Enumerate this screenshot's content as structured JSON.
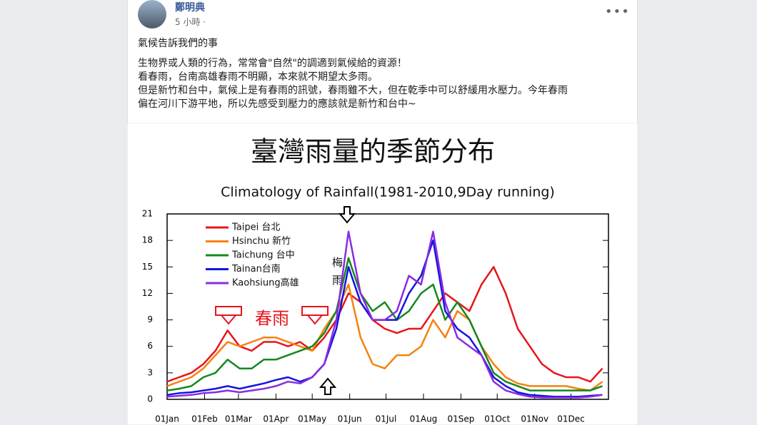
{
  "post": {
    "author": "鄭明典",
    "time": "5 小時 ·",
    "text_lines": [
      "氣候告訴我們的事",
      "生物界或人類的行為，常常會\"自然\"的調適到氣候給的資源！",
      "看春雨，台南高雄春雨不明顯，本來就不期望太多雨。",
      "但是新竹和台中，氣候上是有春雨的訊號，春雨雖不大，但在乾季中可以舒緩用水壓力。今年春雨",
      "偏在河川下游平地，所以先感受到壓力的應該就是新竹和台中~"
    ]
  },
  "chart_data": {
    "type": "line",
    "title": "臺灣雨量的季節分布",
    "subtitle": "Climatology of Rainfall(1981-2010,9Day running)",
    "annotations": [
      "春雨",
      "梅雨"
    ],
    "x": [
      1,
      11,
      21,
      31,
      41,
      51,
      61,
      71,
      81,
      91,
      101,
      111,
      121,
      131,
      141,
      151,
      161,
      171,
      181,
      191,
      201,
      211,
      221,
      231,
      241,
      251,
      261,
      271,
      281,
      291,
      301,
      311,
      321,
      331,
      341,
      351,
      361
    ],
    "xlim": [
      1,
      366
    ],
    "xticks": [
      {
        "value": 1,
        "label": "01Jan"
      },
      {
        "value": 32,
        "label": "01Feb"
      },
      {
        "value": 60,
        "label": "01Mar"
      },
      {
        "value": 91,
        "label": "01Apr"
      },
      {
        "value": 121,
        "label": "01May"
      },
      {
        "value": 152,
        "label": "01Jun"
      },
      {
        "value": 182,
        "label": "01Jul"
      },
      {
        "value": 213,
        "label": "01Aug"
      },
      {
        "value": 244,
        "label": "01Sep"
      },
      {
        "value": 274,
        "label": "01Oct"
      },
      {
        "value": 305,
        "label": "01Nov"
      },
      {
        "value": 335,
        "label": "01Dec"
      }
    ],
    "ylim": [
      0,
      21
    ],
    "yticks": [
      0,
      3,
      6,
      9,
      12,
      15,
      18,
      21
    ],
    "series": [
      {
        "name": "Taipei 台北",
        "color": "#e8141b",
        "values": [
          2,
          2.5,
          3,
          4,
          5.5,
          7.8,
          6,
          5.5,
          6.5,
          6.5,
          6,
          6.5,
          5.5,
          7,
          9,
          12,
          11,
          9,
          8,
          7.5,
          8,
          8,
          10,
          12,
          11,
          10,
          13,
          15,
          12,
          8,
          6,
          4,
          3,
          2.5,
          2.5,
          2,
          3.5
        ]
      },
      {
        "name": "Hsinchu 新竹",
        "color": "#f5820f",
        "values": [
          1.5,
          2,
          2.5,
          3.5,
          5,
          6.5,
          6,
          6.5,
          7,
          7,
          6.5,
          6,
          5.5,
          8,
          10,
          13,
          7,
          4,
          3.5,
          5,
          5,
          6,
          9,
          7,
          10,
          9,
          6,
          4,
          2.5,
          1.8,
          1.5,
          1.5,
          1.5,
          1.5,
          1.2,
          1,
          2
        ]
      },
      {
        "name": "Taichung 台中",
        "color": "#14881e",
        "values": [
          1,
          1.2,
          1.5,
          2.5,
          3,
          4.5,
          3.5,
          3.5,
          4.5,
          4.5,
          5,
          5.5,
          6,
          7.5,
          10,
          16,
          12,
          10,
          11,
          9,
          10,
          12,
          13,
          9,
          11,
          9,
          6,
          3,
          2,
          1.5,
          1,
          1,
          1,
          1,
          1,
          1,
          1.5
        ]
      },
      {
        "name": "Tainan台南",
        "color": "#1414e0",
        "values": [
          0.5,
          0.7,
          0.8,
          1,
          1.2,
          1.5,
          1.2,
          1.5,
          1.8,
          2.2,
          2.5,
          2,
          2.5,
          4,
          8,
          15,
          11,
          9,
          9,
          9,
          12,
          14,
          18,
          10,
          8,
          7,
          5,
          2.5,
          1.5,
          0.8,
          0.5,
          0.4,
          0.3,
          0.3,
          0.3,
          0.4,
          0.5
        ]
      },
      {
        "name": "Kaohsiung高雄",
        "color": "#8a2be2",
        "values": [
          0.3,
          0.4,
          0.5,
          0.7,
          0.8,
          1,
          0.8,
          1,
          1.2,
          1.5,
          2,
          1.8,
          2.5,
          4,
          9,
          19,
          12,
          9,
          9,
          10,
          14,
          13,
          19,
          11,
          7,
          6,
          5,
          2,
          1,
          0.6,
          0.3,
          0.2,
          0.2,
          0.2,
          0.2,
          0.3,
          0.5
        ]
      }
    ]
  }
}
